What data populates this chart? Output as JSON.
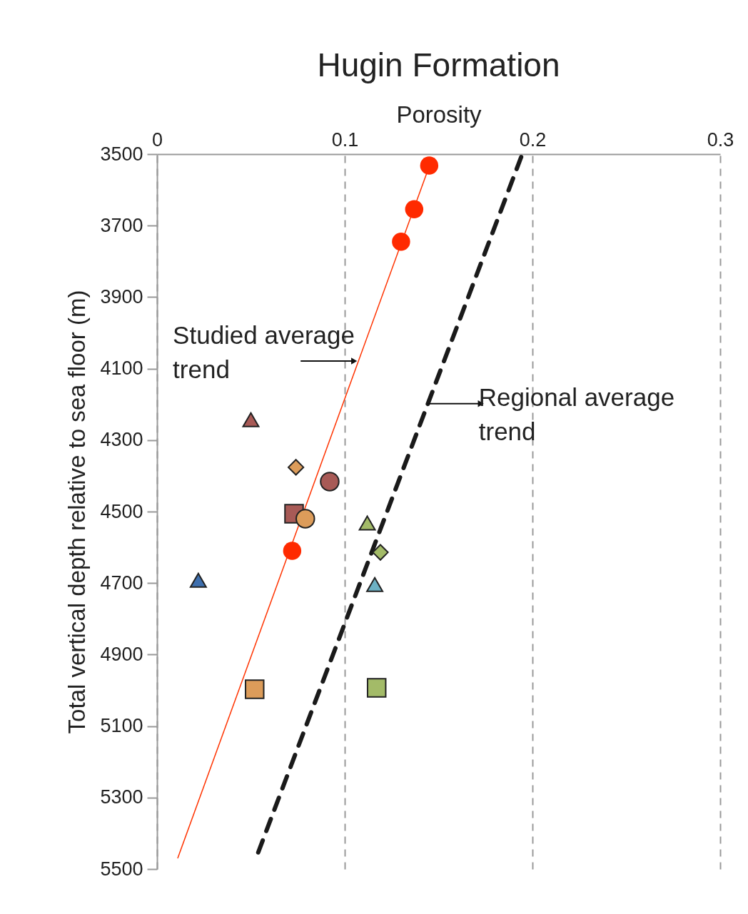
{
  "chart_data": {
    "type": "scatter",
    "title": "Hugin Formation",
    "xlabel": "Porosity",
    "ylabel": "Total vertical depth relative to sea floor (m)",
    "xlim": [
      0,
      0.3
    ],
    "xticks": [
      0,
      0.1,
      0.2,
      0.3
    ],
    "ylim": [
      5500,
      3500
    ],
    "yticks": [
      3500,
      3700,
      3900,
      4100,
      4300,
      4500,
      4700,
      4900,
      5100,
      5300,
      5500
    ],
    "grid": "x",
    "series": [
      {
        "type": "line",
        "color": "#ff3300",
        "line_style": "solid",
        "marker": "none",
        "x": [
          0.146,
          0.011
        ],
        "values": [
          3520,
          5470
        ]
      },
      {
        "type": "line",
        "color": "#1a1a1a",
        "line_style": "dashed",
        "marker": "none",
        "x": [
          0.194,
          0.053
        ],
        "values": [
          3508,
          5466
        ]
      },
      {
        "color": "#ff2a00",
        "marker": "circle",
        "x": [
          0.145,
          0.137,
          0.13,
          0.072
        ],
        "values": [
          3532,
          3654,
          3745,
          4610
        ]
      },
      {
        "color": "#a85a56",
        "marker": "triangle",
        "x": [
          0.05
        ],
        "values": [
          4243
        ]
      },
      {
        "color": "#a85a56",
        "marker": "circle",
        "x": [
          0.092
        ],
        "values": [
          4416
        ]
      },
      {
        "color": "#a85a56",
        "marker": "square",
        "x": [
          0.073
        ],
        "values": [
          4506
        ]
      },
      {
        "color": "#dc9c5a",
        "marker": "diamond",
        "x": [
          0.074
        ],
        "values": [
          4376
        ]
      },
      {
        "color": "#dc9c5a",
        "marker": "circle",
        "x": [
          0.079
        ],
        "values": [
          4520
        ]
      },
      {
        "color": "#dc9c5a",
        "marker": "square",
        "x": [
          0.052
        ],
        "values": [
          4997
        ]
      },
      {
        "color": "#a3bb68",
        "marker": "triangle",
        "x": [
          0.112
        ],
        "values": [
          4532
        ]
      },
      {
        "color": "#a3bb68",
        "marker": "diamond",
        "x": [
          0.119
        ],
        "values": [
          4614
        ]
      },
      {
        "color": "#a3bb68",
        "marker": "square",
        "x": [
          0.117
        ],
        "values": [
          4993
        ]
      },
      {
        "color": "#3e6fae",
        "marker": "triangle",
        "x": [
          0.022
        ],
        "values": [
          4692
        ]
      },
      {
        "color": "#6cb1c4",
        "marker": "triangle",
        "x": [
          0.116
        ],
        "values": [
          4704
        ]
      }
    ],
    "annotations": [
      {
        "text": "Studied average trend",
        "x": 0.105,
        "y": 4079
      },
      {
        "text": "Regional average trend",
        "x": 0.144,
        "y": 4198
      }
    ]
  }
}
